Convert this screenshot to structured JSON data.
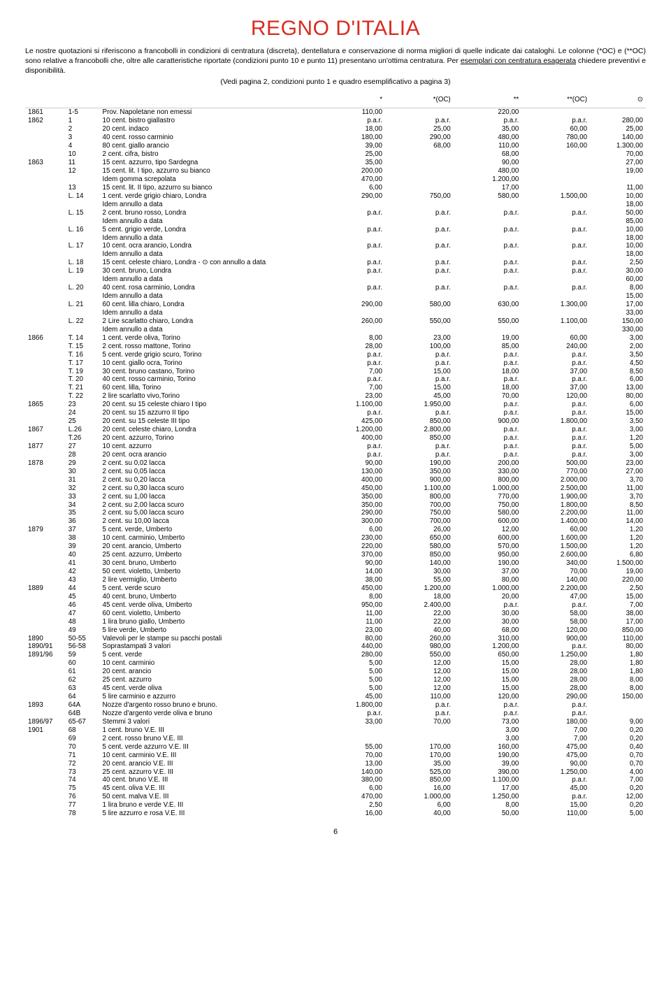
{
  "title": "REGNO D'ITALIA",
  "intro_html": "Le nostre quotazioni si riferiscono a francobolli in condizioni di centratura (discreta), dentellatura e conservazione di norma migliori di quelle indicate dai cataloghi. Le colonne (*OC) e (**OC) sono relative a francobolli che, oltre alle caratteristiche riportate (condizioni punto 10 e punto 11) presentano un'ottima centratura. Per <span class='underline'>esemplari con centratura esagerata</span> chiedere preventivi e disponibilità.",
  "subnote": "(Vedi pagina 2, condizioni punto 1 e quadro esemplificativo a pagina 3)",
  "headers": [
    "*",
    "*(OC)",
    "**",
    "**(OC)",
    "⊙"
  ],
  "page_number": "6",
  "rows": [
    {
      "y": "1861",
      "n": "1-5",
      "d": "Prov. Napoletane non emessi",
      "c": [
        "110,00",
        "",
        "220,00",
        "",
        ""
      ]
    },
    {
      "y": "1862",
      "n": "1",
      "d": "10 cent. bistro giallastro",
      "c": [
        "p.a.r.",
        "p.a.r.",
        "p.a.r.",
        "p.a.r.",
        "280,00"
      ]
    },
    {
      "n": "2",
      "d": "20 cent. indaco",
      "c": [
        "18,00",
        "25,00",
        "35,00",
        "60,00",
        "25,00"
      ]
    },
    {
      "n": "3",
      "d": "40 cent. rosso carminio",
      "c": [
        "180,00",
        "290,00",
        "480,00",
        "780,00",
        "140,00"
      ]
    },
    {
      "n": "4",
      "d": "80 cent. giallo arancio",
      "c": [
        "39,00",
        "68,00",
        "110,00",
        "160,00",
        "1.300,00"
      ]
    },
    {
      "n": "10",
      "d": "2 cent. cifra, bistro",
      "c": [
        "25,00",
        "",
        "68,00",
        "",
        "70,00"
      ]
    },
    {
      "y": "1863",
      "n": "11",
      "d": "15 cent. azzurro, tipo Sardegna",
      "c": [
        "35,00",
        "",
        "90,00",
        "",
        "27,00"
      ]
    },
    {
      "n": "12",
      "d": "15 cent. lit. I tipo, azzurro su bianco",
      "c": [
        "200,00",
        "",
        "480,00",
        "",
        "19,00"
      ]
    },
    {
      "d": "Idem gomma screpolata",
      "c": [
        "470,00",
        "",
        "1.200,00",
        "",
        ""
      ]
    },
    {
      "n": "13",
      "d": "15 cent. lit. II tipo, azzurro su bianco",
      "c": [
        "6,00",
        "",
        "17,00",
        "",
        "11,00"
      ]
    },
    {
      "n": "L. 14",
      "d": "1 cent. verde grigio chiaro, Londra",
      "c": [
        "290,00",
        "750,00",
        "580,00",
        "1.500,00",
        "10,00"
      ]
    },
    {
      "d": "Idem annullo a data",
      "c": [
        "",
        "",
        "",
        "",
        "18,00"
      ]
    },
    {
      "n": "L. 15",
      "d": "2 cent. bruno rosso, Londra",
      "c": [
        "p.a.r.",
        "p.a.r.",
        "p.a.r.",
        "p.a.r.",
        "50,00"
      ]
    },
    {
      "d": "Idem annullo a data",
      "c": [
        "",
        "",
        "",
        "",
        "85,00"
      ]
    },
    {
      "n": "L. 16",
      "d": "5 cent. grigio verde, Londra",
      "c": [
        "p.a.r.",
        "p.a.r.",
        "p.a.r.",
        "p.a.r.",
        "10,00"
      ]
    },
    {
      "d": "Idem annullo a data",
      "c": [
        "",
        "",
        "",
        "",
        "18,00"
      ]
    },
    {
      "n": "L. 17",
      "d": "10 cent. ocra arancio, Londra",
      "c": [
        "p.a.r.",
        "p.a.r.",
        "p.a.r.",
        "p.a.r.",
        "10,00"
      ]
    },
    {
      "d": "Idem annullo a data",
      "c": [
        "",
        "",
        "",
        "",
        "18,00"
      ]
    },
    {
      "n": "L. 18",
      "d": "15 cent. celeste chiaro, Londra - ⊙ con annullo a data",
      "c": [
        "p.a.r.",
        "p.a.r.",
        "p.a.r.",
        "p.a.r.",
        "2,50"
      ]
    },
    {
      "n": "L. 19",
      "d": "30 cent. bruno, Londra",
      "c": [
        "p.a.r.",
        "p.a.r.",
        "p.a.r.",
        "p.a.r.",
        "30,00"
      ]
    },
    {
      "d": "Idem annullo a data",
      "c": [
        "",
        "",
        "",
        "",
        "60,00"
      ]
    },
    {
      "n": "L. 20",
      "d": "40 cent. rosa carminio, Londra",
      "c": [
        "p.a.r.",
        "p.a.r.",
        "p.a.r.",
        "p.a.r.",
        "8,00"
      ]
    },
    {
      "d": "Idem annullo a data",
      "c": [
        "",
        "",
        "",
        "",
        "15,00"
      ]
    },
    {
      "n": "L. 21",
      "d": "60 cent. lilla chiaro, Londra",
      "c": [
        "290,00",
        "580,00",
        "630,00",
        "1.300,00",
        "17,00"
      ]
    },
    {
      "d": "Idem annullo a data",
      "c": [
        "",
        "",
        "",
        "",
        "33,00"
      ]
    },
    {
      "n": "L. 22",
      "d": "2 Lire scarlatto chiaro, Londra",
      "c": [
        "260,00",
        "550,00",
        "550,00",
        "1.100,00",
        "150,00"
      ]
    },
    {
      "d": "Idem annullo a data",
      "c": [
        "",
        "",
        "",
        "",
        "330,00"
      ]
    },
    {
      "y": "1866",
      "n": "T. 14",
      "d": "1 cent. verde oliva, Torino",
      "c": [
        "8,00",
        "23,00",
        "19,00",
        "60,00",
        "3,00"
      ]
    },
    {
      "n": "T. 15",
      "d": "2 cent. rosso mattone, Torino",
      "c": [
        "28,00",
        "100,00",
        "85,00",
        "240,00",
        "2,00"
      ]
    },
    {
      "n": "T. 16",
      "d": "5 cent. verde grigio scuro, Torino",
      "c": [
        "p.a.r.",
        "p.a.r.",
        "p.a.r.",
        "p.a.r.",
        "3,50"
      ]
    },
    {
      "n": "T. 17",
      "d": "10 cent. giallo ocra, Torino",
      "c": [
        "p.a.r.",
        "p.a.r.",
        "p.a.r.",
        "p.a.r.",
        "4,50"
      ]
    },
    {
      "n": "T. 19",
      "d": "30 cent. bruno castano, Torino",
      "c": [
        "7,00",
        "15,00",
        "18,00",
        "37,00",
        "8,50"
      ]
    },
    {
      "n": "T. 20",
      "d": "40 cent. rosso carminio, Torino",
      "c": [
        "p.a.r.",
        "p.a.r.",
        "p.a.r.",
        "p.a.r.",
        "6,00"
      ]
    },
    {
      "n": "T. 21",
      "d": "60 cent. lilla, Torino",
      "c": [
        "7,00",
        "15,00",
        "18,00",
        "37,00",
        "13,00"
      ]
    },
    {
      "n": "T. 22",
      "d": "2 lire scarlatto vivo,Torino",
      "c": [
        "23,00",
        "45,00",
        "70,00",
        "120,00",
        "80,00"
      ]
    },
    {
      "y": "1865",
      "n": "23",
      "d": "20 cent. su 15 celeste chiaro I tipo",
      "c": [
        "1.100,00",
        "1.950,00",
        "p.a.r.",
        "p.a.r.",
        "6,00"
      ]
    },
    {
      "n": "24",
      "d": "20 cent. su 15 azzurro II tipo",
      "c": [
        "p.a.r.",
        "p.a.r.",
        "p.a.r.",
        "p.a.r.",
        "15,00"
      ]
    },
    {
      "n": "25",
      "d": "20 cent. su 15 celeste III tipo",
      "c": [
        "425,00",
        "850,00",
        "900,00",
        "1.800,00",
        "3,50"
      ]
    },
    {
      "y": "1867",
      "n": "L.26",
      "d": "20 cent. celeste chiaro, Londra",
      "c": [
        "1.200,00",
        "2.800,00",
        "p.a.r.",
        "p.a.r.",
        "3,00"
      ]
    },
    {
      "n": "T.26",
      "d": "20 cent. azzurro, Torino",
      "c": [
        "400,00",
        "850,00",
        "p.a.r.",
        "p.a.r.",
        "1,20"
      ]
    },
    {
      "y": "1877",
      "n": "27",
      "d": "10 cent. azzurro",
      "c": [
        "p.a.r.",
        "p.a.r.",
        "p.a.r.",
        "p.a.r.",
        "5,00"
      ]
    },
    {
      "n": "28",
      "d": "20 cent. ocra arancio",
      "c": [
        "p.a.r.",
        "p.a.r.",
        "p.a.r.",
        "p.a.r.",
        "3,00"
      ]
    },
    {
      "y": "1878",
      "n": "29",
      "d": "2 cent. su 0,02 lacca",
      "c": [
        "90,00",
        "190,00",
        "200,00",
        "500,00",
        "23,00"
      ]
    },
    {
      "n": "30",
      "d": "2 cent. su 0,05 lacca",
      "c": [
        "130,00",
        "350,00",
        "330,00",
        "770,00",
        "27,00"
      ]
    },
    {
      "n": "31",
      "d": "2 cent. su 0,20 lacca",
      "c": [
        "400,00",
        "900,00",
        "800,00",
        "2.000,00",
        "3,70"
      ]
    },
    {
      "n": "32",
      "d": "2 cent. su 0,30 lacca scuro",
      "c": [
        "450,00",
        "1.100,00",
        "1.000,00",
        "2.500,00",
        "11,00"
      ]
    },
    {
      "n": "33",
      "d": "2 cent. su 1,00 lacca",
      "c": [
        "350,00",
        "800,00",
        "770,00",
        "1.900,00",
        "3,70"
      ]
    },
    {
      "n": "34",
      "d": "2 cent. su 2,00 lacca scuro",
      "c": [
        "350,00",
        "700,00",
        "750,00",
        "1.800,00",
        "8,50"
      ]
    },
    {
      "n": "35",
      "d": "2 cent. su 5,00 lacca scuro",
      "c": [
        "290,00",
        "750,00",
        "580,00",
        "2.200,00",
        "11,00"
      ]
    },
    {
      "n": "36",
      "d": "2 cent. su 10,00 lacca",
      "c": [
        "300,00",
        "700,00",
        "600,00",
        "1.400,00",
        "14,00"
      ]
    },
    {
      "y": "1879",
      "n": "37",
      "d": "5 cent. verde, Umberto",
      "c": [
        "6,00",
        "26,00",
        "12,00",
        "60,00",
        "1,20"
      ]
    },
    {
      "n": "38",
      "d": "10 cent. carminio, Umberto",
      "c": [
        "230,00",
        "650,00",
        "600,00",
        "1.600,00",
        "1,20"
      ]
    },
    {
      "n": "39",
      "d": "20 cent. arancio, Umberto",
      "c": [
        "220,00",
        "580,00",
        "570,00",
        "1.500,00",
        "1,20"
      ]
    },
    {
      "n": "40",
      "d": "25 cent. azzurro, Umberto",
      "c": [
        "370,00",
        "850,00",
        "950,00",
        "2.600,00",
        "6,80"
      ]
    },
    {
      "n": "41",
      "d": "30 cent. bruno, Umberto",
      "c": [
        "90,00",
        "140,00",
        "190,00",
        "340,00",
        "1.500,00"
      ]
    },
    {
      "n": "42",
      "d": "50 cent. violetto, Umberto",
      "c": [
        "14,00",
        "30,00",
        "37,00",
        "70,00",
        "19,00"
      ]
    },
    {
      "n": "43",
      "d": "2 lire vermiglio, Umberto",
      "c": [
        "38,00",
        "55,00",
        "80,00",
        "140,00",
        "220,00"
      ]
    },
    {
      "y": "1889",
      "n": "44",
      "d": "5 cent. verde scuro",
      "c": [
        "450,00",
        "1.200,00",
        "1.000,00",
        "2.200,00",
        "2,50"
      ]
    },
    {
      "n": "45",
      "d": "40 cent. bruno, Umberto",
      "c": [
        "8,00",
        "18,00",
        "20,00",
        "47,00",
        "15,00"
      ]
    },
    {
      "n": "46",
      "d": "45 cent. verde oliva, Umberto",
      "c": [
        "950,00",
        "2.400,00",
        "p.a.r.",
        "p.a.r.",
        "7,00"
      ]
    },
    {
      "n": "47",
      "d": "60 cent. violetto, Umberto",
      "c": [
        "11,00",
        "22,00",
        "30,00",
        "58,00",
        "38,00"
      ]
    },
    {
      "n": "48",
      "d": "1 lira bruno giallo, Umberto",
      "c": [
        "11,00",
        "22,00",
        "30,00",
        "58,00",
        "17,00"
      ]
    },
    {
      "n": "49",
      "d": "5 lire verde, Umberto",
      "c": [
        "23,00",
        "40,00",
        "68,00",
        "120,00",
        "850,00"
      ]
    },
    {
      "y": "1890",
      "n": "50-55",
      "d": "Valevoli per le stampe su pacchi postali",
      "c": [
        "80,00",
        "260,00",
        "310,00",
        "900,00",
        "110,00"
      ]
    },
    {
      "y": "1890/91",
      "n": "56-58",
      "d": "Soprastampati 3 valori",
      "c": [
        "440,00",
        "980,00",
        "1.200,00",
        "p.a.r.",
        "80,00"
      ]
    },
    {
      "y": "1891/96",
      "n": "59",
      "d": "5 cent. verde",
      "c": [
        "280,00",
        "550,00",
        "650,00",
        "1.250,00",
        "1,80"
      ]
    },
    {
      "n": "60",
      "d": "10 cent. carminio",
      "c": [
        "5,00",
        "12,00",
        "15,00",
        "28,00",
        "1,80"
      ]
    },
    {
      "n": "61",
      "d": "20 cent. arancio",
      "c": [
        "5,00",
        "12,00",
        "15,00",
        "28,00",
        "1,80"
      ]
    },
    {
      "n": "62",
      "d": "25 cent. azzurro",
      "c": [
        "5,00",
        "12,00",
        "15,00",
        "28,00",
        "8,00"
      ]
    },
    {
      "n": "63",
      "d": "45 cent. verde oliva",
      "c": [
        "5,00",
        "12,00",
        "15,00",
        "28,00",
        "8,00"
      ]
    },
    {
      "n": "64",
      "d": "5 lire carminio e azzurro",
      "c": [
        "45,00",
        "110,00",
        "120,00",
        "290,00",
        "150,00"
      ]
    },
    {
      "y": "1893",
      "n": "64A",
      "d": "Nozze d'argento rosso bruno e bruno.",
      "c": [
        "1.800,00",
        "p.a.r.",
        "p.a.r.",
        "p.a.r.",
        ""
      ]
    },
    {
      "n": "64B",
      "d": "Nozze d'argento verde oliva e bruno",
      "c": [
        "p.a.r.",
        "p.a.r.",
        "p.a.r.",
        "p.a.r.",
        ""
      ]
    },
    {
      "y": "1896/97",
      "n": "65-67",
      "d": "Stemmi 3 valori",
      "c": [
        "33,00",
        "70,00",
        "73,00",
        "180,00",
        "9,00"
      ]
    },
    {
      "y": "1901",
      "n": "68",
      "d": "1 cent. bruno V.E. III",
      "c": [
        "",
        "",
        "3,00",
        "7,00",
        "0,20"
      ]
    },
    {
      "n": "69",
      "d": "2 cent. rosso bruno V.E. III",
      "c": [
        "",
        "",
        "3,00",
        "7,00",
        "0,20"
      ]
    },
    {
      "n": "70",
      "d": "5 cent. verde azzurro V.E. III",
      "c": [
        "55,00",
        "170,00",
        "160,00",
        "475,00",
        "0,40"
      ]
    },
    {
      "n": "71",
      "d": "10 cent. carminio V.E. III",
      "c": [
        "70,00",
        "170,00",
        "190,00",
        "475,00",
        "0,70"
      ]
    },
    {
      "n": "72",
      "d": "20 cent. arancio V.E. III",
      "c": [
        "13,00",
        "35,00",
        "39,00",
        "90,00",
        "0,70"
      ]
    },
    {
      "n": "73",
      "d": "25 cent. azzurro V.E. III",
      "c": [
        "140,00",
        "525,00",
        "390,00",
        "1.250,00",
        "4,00"
      ]
    },
    {
      "n": "74",
      "d": "40 cent. bruno V.E. III",
      "c": [
        "380,00",
        "850,00",
        "1.100,00",
        "p.a.r.",
        "7,00"
      ]
    },
    {
      "n": "75",
      "d": "45 cent. oliva V.E. III",
      "c": [
        "6,00",
        "16,00",
        "17,00",
        "45,00",
        "0,20"
      ]
    },
    {
      "n": "76",
      "d": "50 cent. malva V.E. III",
      "c": [
        "470,00",
        "1.000,00",
        "1.250,00",
        "p.a.r.",
        "12,00"
      ]
    },
    {
      "n": "77",
      "d": "1 lira bruno e verde V.E. III",
      "c": [
        "2,50",
        "6,00",
        "8,00",
        "15,00",
        "0,20"
      ]
    },
    {
      "n": "78",
      "d": "5 lire azzurro e rosa V.E. III",
      "c": [
        "16,00",
        "40,00",
        "50,00",
        "110,00",
        "5,00"
      ]
    }
  ]
}
